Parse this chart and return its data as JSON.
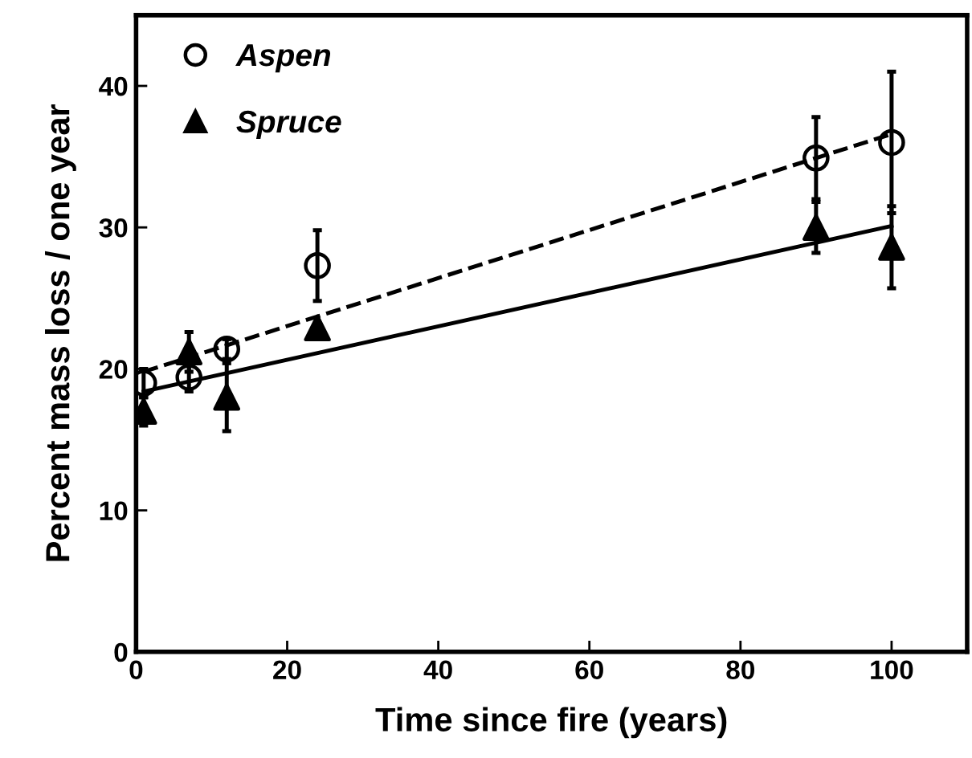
{
  "chart_data": {
    "type": "scatter",
    "xlabel": "Time since fire (years)",
    "ylabel": "Percent mass loss / one year",
    "xlim": [
      0,
      110
    ],
    "ylim": [
      0,
      45
    ],
    "xticks": [
      0,
      20,
      40,
      60,
      80,
      100
    ],
    "yticks": [
      0,
      10,
      20,
      30,
      40
    ],
    "grid": false,
    "legend": "top left",
    "series": [
      {
        "name": "Aspen",
        "marker": "circle",
        "color": "#000000",
        "x": [
          1,
          7,
          12,
          24,
          90,
          100
        ],
        "values": [
          19.0,
          19.4,
          21.4,
          27.3,
          34.9,
          36.0
        ],
        "errors": [
          1.0,
          1.0,
          0.7,
          2.5,
          2.9,
          5.0
        ]
      },
      {
        "name": "Spruce",
        "marker": "triangle",
        "color": "#000000",
        "x": [
          1,
          7,
          12,
          24,
          90,
          100
        ],
        "values": [
          17.0,
          21.2,
          18.0,
          22.9,
          30.0,
          28.6
        ],
        "errors": [
          1.0,
          1.4,
          2.4,
          0.3,
          1.8,
          2.9
        ]
      },
      {
        "type": "line",
        "line_style": "dashed",
        "color": "#000000",
        "x": [
          1,
          100
        ],
        "values": [
          19.8,
          36.6
        ]
      },
      {
        "type": "line",
        "line_style": "solid",
        "color": "#000000",
        "x": [
          1,
          100
        ],
        "values": [
          18.4,
          30.1
        ]
      }
    ]
  }
}
